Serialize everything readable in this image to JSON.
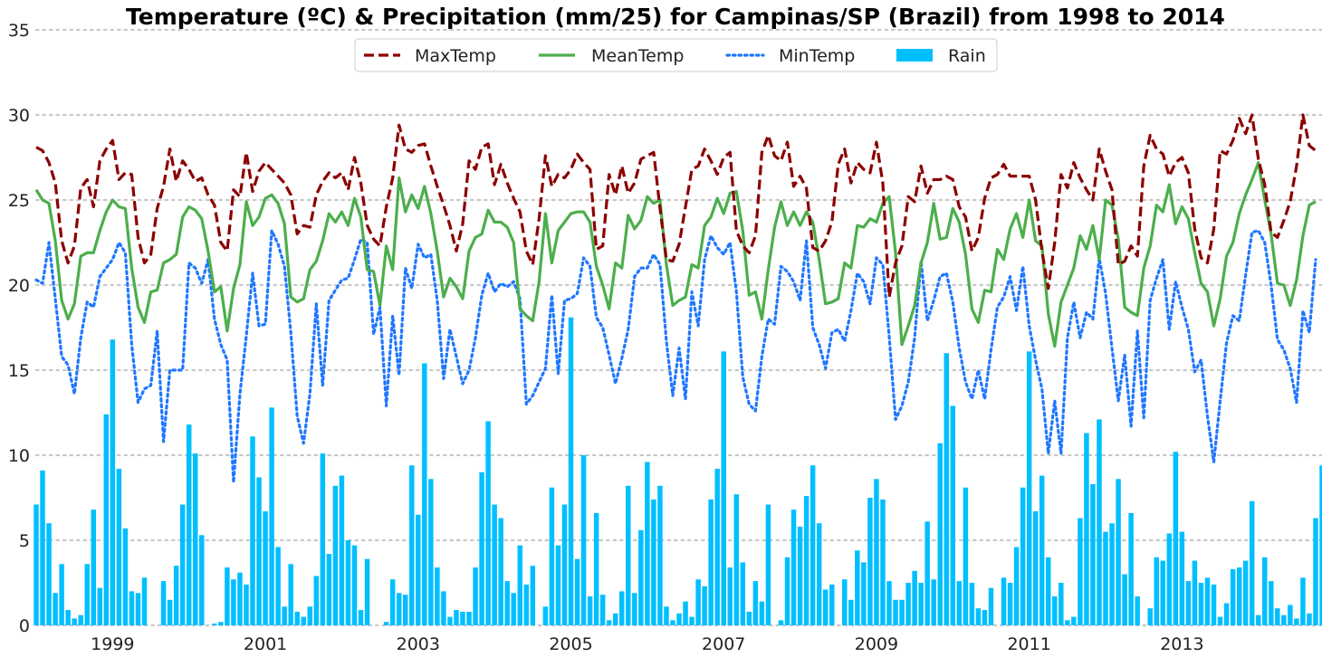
{
  "chart_data": {
    "type": "bar+line",
    "title": "Temperature (ºC) & Precipitation (mm/25) for Campinas/SP (Brazil) from 1998 to 2014",
    "xlabel": "",
    "ylabel": "",
    "x_start": "1998-01",
    "x_end": "2014-12",
    "x_tick_labels": [
      "1999",
      "2001",
      "2003",
      "2005",
      "2007",
      "2009",
      "2011",
      "2013"
    ],
    "ylim": [
      0,
      35
    ],
    "y_ticks": [
      0,
      5,
      10,
      15,
      20,
      25,
      30,
      35
    ],
    "grid": "horizontal dotted",
    "legend": {
      "placement": "top-center",
      "entries": [
        {
          "label": "MaxTemp",
          "style": "dashed",
          "color": "#8b0000"
        },
        {
          "label": "MeanTemp",
          "style": "solid",
          "color": "#4cae4c"
        },
        {
          "label": "MinTemp",
          "style": "dotted",
          "color": "#1f77ff"
        },
        {
          "label": "Rain",
          "style": "bar",
          "color": "#00bfff"
        }
      ]
    },
    "series": [
      {
        "name": "MaxTemp",
        "type": "line",
        "color": "#8b0000",
        "values": [
          28.1,
          27.9,
          27.2,
          26.0,
          22.6,
          21.3,
          22.3,
          25.7,
          26.2,
          24.6,
          27.3,
          28.0,
          28.5,
          26.2,
          26.6,
          26.5,
          22.8,
          21.3,
          21.8,
          24.5,
          25.8,
          28.0,
          26.1,
          27.3,
          26.8,
          26.1,
          26.3,
          25.3,
          24.7,
          22.5,
          22.0,
          25.6,
          25.2,
          27.8,
          25.5,
          26.7,
          27.2,
          26.8,
          26.4,
          26.0,
          25.3,
          23.0,
          23.5,
          23.4,
          25.3,
          26.1,
          26.6,
          26.3,
          26.6,
          25.6,
          27.5,
          26.0,
          23.5,
          22.7,
          22.3,
          24.6,
          26.3,
          29.4,
          28.0,
          27.8,
          28.2,
          28.3,
          27.0,
          25.8,
          24.7,
          23.5,
          22.0,
          23.6,
          27.3,
          26.8,
          28.1,
          28.3,
          25.9,
          27.1,
          26.0,
          25.1,
          24.3,
          22.0,
          21.2,
          23.9,
          27.6,
          25.8,
          26.5,
          26.3,
          26.8,
          27.7,
          27.2,
          26.8,
          22.1,
          22.3,
          26.5,
          25.3,
          27.0,
          25.4,
          26.0,
          27.4,
          27.6,
          27.8,
          24.5,
          21.5,
          21.4,
          22.4,
          24.6,
          26.8,
          27.0,
          28.0,
          27.3,
          26.5,
          27.5,
          27.8,
          23.2,
          22.3,
          21.9,
          22.9,
          27.8,
          28.8,
          27.6,
          27.3,
          28.4,
          25.8,
          26.4,
          25.7,
          22.2,
          22.0,
          22.6,
          23.7,
          27.1,
          28.0,
          26.0,
          27.2,
          26.8,
          26.6,
          28.4,
          26.0,
          19.3,
          21.3,
          22.3,
          25.2,
          24.9,
          27.0,
          25.4,
          26.2,
          26.2,
          26.4,
          26.2,
          24.6,
          24.0,
          22.0,
          22.8,
          25.1,
          26.3,
          26.5,
          27.1,
          26.4,
          26.4,
          26.4,
          26.4,
          25.0,
          22.0,
          19.8,
          22.5,
          26.5,
          25.7,
          27.2,
          26.3,
          25.6,
          25.0,
          28.0,
          26.7,
          25.6,
          21.2,
          21.4,
          22.3,
          21.7,
          27.0,
          28.8,
          28.0,
          27.7,
          26.4,
          27.2,
          27.5,
          26.6,
          23.3,
          21.6,
          21.3,
          23.3,
          27.9,
          27.7,
          28.5,
          29.8,
          28.9,
          30.0,
          27.4,
          25.9,
          23.1,
          22.8,
          23.8,
          24.9,
          27.0,
          30.0,
          28.2,
          27.9
        ]
      },
      {
        "name": "MeanTemp",
        "type": "line",
        "color": "#4cae4c",
        "values": [
          25.6,
          25.0,
          24.8,
          22.6,
          19.1,
          18.0,
          18.9,
          21.7,
          21.9,
          21.9,
          23.2,
          24.3,
          25.0,
          24.6,
          24.5,
          21.0,
          18.7,
          17.8,
          19.6,
          19.7,
          21.3,
          21.5,
          21.8,
          24.0,
          24.6,
          24.4,
          23.9,
          22.0,
          19.6,
          19.9,
          17.3,
          19.8,
          21.2,
          24.9,
          23.5,
          24.0,
          25.1,
          25.3,
          24.8,
          23.6,
          19.3,
          19.0,
          19.2,
          20.9,
          21.4,
          22.6,
          24.2,
          23.7,
          24.3,
          23.5,
          25.1,
          24.0,
          20.9,
          20.8,
          18.8,
          22.3,
          20.9,
          26.3,
          24.3,
          25.3,
          24.5,
          25.8,
          24.2,
          22.0,
          19.3,
          20.4,
          19.9,
          19.2,
          22.0,
          22.8,
          23.0,
          24.4,
          23.7,
          23.7,
          23.4,
          22.5,
          18.6,
          18.2,
          17.9,
          20.2,
          24.2,
          21.3,
          23.2,
          23.7,
          24.2,
          24.3,
          24.3,
          23.7,
          21.1,
          20.0,
          18.6,
          21.3,
          21.0,
          24.1,
          23.3,
          23.8,
          25.2,
          24.8,
          25.0,
          21.2,
          18.8,
          19.1,
          19.3,
          21.2,
          21.0,
          23.5,
          24.0,
          25.1,
          24.2,
          25.4,
          25.5,
          23.2,
          19.4,
          19.6,
          18.0,
          20.9,
          23.4,
          24.9,
          23.5,
          24.3,
          23.5,
          24.3,
          23.7,
          21.5,
          18.9,
          19.0,
          19.2,
          21.3,
          21.0,
          23.5,
          23.4,
          23.9,
          23.7,
          24.8,
          25.2,
          21.9,
          16.5,
          17.6,
          18.8,
          21.3,
          22.5,
          24.8,
          22.7,
          22.8,
          24.5,
          23.7,
          21.8,
          18.6,
          17.8,
          19.7,
          19.6,
          22.1,
          21.5,
          23.3,
          24.2,
          22.8,
          25.0,
          22.6,
          22.3,
          18.3,
          16.4,
          19.0,
          20.0,
          21.0,
          22.9,
          22.1,
          23.5,
          21.5,
          25.0,
          24.7,
          22.7,
          18.7,
          18.4,
          18.2,
          21.0,
          22.3,
          24.7,
          24.3,
          25.9,
          23.6,
          24.6,
          23.9,
          21.9,
          20.1,
          19.6,
          17.6,
          19.2,
          21.7,
          22.5,
          24.2,
          25.3,
          26.2,
          27.2,
          25.0,
          23.0,
          20.1,
          20.0,
          18.8,
          20.3,
          22.9,
          24.7,
          24.9
        ]
      },
      {
        "name": "MinTemp",
        "type": "line",
        "color": "#1f77ff",
        "values": [
          20.3,
          20.1,
          22.5,
          19.2,
          15.8,
          15.3,
          13.6,
          16.9,
          19.0,
          18.7,
          20.5,
          21.0,
          21.5,
          22.5,
          21.9,
          16.5,
          13.1,
          13.9,
          14.1,
          17.3,
          10.8,
          15.0,
          15.0,
          15.0,
          21.3,
          21.0,
          20.1,
          21.5,
          18.0,
          16.5,
          15.6,
          8.4,
          13.6,
          17.0,
          20.7,
          17.6,
          17.7,
          23.2,
          22.4,
          21.1,
          17.2,
          12.3,
          10.7,
          13.6,
          18.9,
          14.1,
          19.1,
          19.7,
          20.3,
          20.4,
          21.5,
          22.7,
          22.5,
          17.1,
          18.7,
          12.9,
          18.2,
          14.7,
          21.0,
          19.8,
          22.4,
          21.6,
          21.8,
          19.1,
          14.5,
          17.4,
          15.8,
          14.2,
          15.0,
          16.9,
          19.4,
          20.7,
          19.6,
          20.1,
          19.9,
          20.2,
          19.2,
          13.0,
          13.5,
          14.3,
          15.1,
          19.4,
          14.8,
          19.1,
          19.2,
          19.5,
          21.6,
          21.1,
          18.1,
          17.5,
          15.9,
          14.2,
          15.7,
          17.4,
          20.5,
          21.0,
          21.0,
          21.8,
          21.2,
          16.7,
          13.5,
          16.3,
          13.3,
          19.6,
          17.6,
          21.5,
          22.9,
          22.2,
          21.8,
          22.5,
          19.6,
          14.6,
          13.0,
          12.6,
          15.8,
          18.0,
          17.7,
          21.1,
          20.8,
          20.2,
          19.1,
          22.6,
          17.5,
          16.5,
          15.1,
          17.2,
          17.4,
          16.7,
          18.5,
          20.7,
          20.2,
          18.9,
          21.6,
          21.2,
          17.0,
          12.1,
          12.9,
          14.3,
          16.9,
          21.4,
          17.9,
          19.1,
          20.5,
          20.7,
          19.0,
          16.3,
          14.3,
          13.3,
          15.0,
          13.3,
          16.2,
          18.7,
          19.3,
          20.5,
          18.5,
          21.1,
          17.6,
          15.6,
          13.9,
          10.1,
          13.2,
          10.1,
          16.9,
          19.0,
          16.9,
          18.4,
          18.0,
          21.6,
          19.5,
          16.3,
          13.2,
          15.9,
          11.7,
          17.3,
          12.2,
          19.1,
          20.4,
          21.5,
          17.4,
          20.2,
          18.7,
          17.4,
          14.9,
          15.6,
          12.3,
          9.6,
          13.2,
          16.6,
          18.2,
          17.9,
          20.6,
          23.1,
          23.2,
          22.5,
          20.0,
          16.8,
          16.2,
          15.1,
          13.1,
          18.5,
          17.2,
          21.5
        ]
      },
      {
        "name": "Rain",
        "type": "bar",
        "color": "#00bfff",
        "values": [
          7.1,
          9.1,
          6.0,
          1.9,
          3.6,
          0.9,
          0.4,
          0.6,
          3.6,
          6.8,
          2.2,
          12.4,
          16.8,
          9.2,
          5.7,
          2.0,
          1.9,
          2.8,
          0,
          0,
          2.6,
          1.5,
          3.5,
          7.1,
          11.8,
          10.1,
          5.3,
          0,
          0.1,
          0.2,
          3.4,
          2.7,
          3.1,
          2.4,
          11.1,
          8.7,
          6.7,
          12.8,
          4.6,
          1.1,
          3.6,
          0.8,
          0.5,
          1.1,
          2.9,
          10.1,
          4.2,
          8.2,
          8.8,
          5.0,
          4.7,
          0.9,
          3.9,
          0,
          0,
          0.2,
          2.7,
          1.9,
          1.8,
          9.4,
          6.5,
          15.4,
          8.6,
          3.4,
          2.0,
          0.5,
          0.9,
          0.8,
          0.8,
          3.4,
          9.0,
          12.0,
          7.1,
          6.3,
          2.6,
          1.9,
          4.7,
          2.4,
          3.5,
          0,
          1.1,
          8.1,
          4.7,
          7.1,
          18.1,
          3.9,
          10.0,
          1.7,
          6.6,
          1.8,
          0.3,
          0.7,
          2.0,
          8.2,
          1.9,
          5.6,
          9.6,
          7.4,
          8.2,
          1.1,
          0.3,
          0.7,
          1.4,
          0.5,
          2.7,
          2.3,
          7.4,
          9.2,
          16.1,
          3.4,
          7.7,
          3.7,
          0.8,
          2.6,
          1.4,
          7.1,
          0,
          0.3,
          4.0,
          6.8,
          5.8,
          7.6,
          9.4,
          6.0,
          2.1,
          2.4,
          0,
          2.7,
          1.5,
          4.4,
          3.7,
          7.5,
          8.6,
          7.4,
          2.6,
          1.5,
          1.5,
          2.5,
          3.2,
          2.5,
          6.1,
          2.7,
          10.7,
          16.0,
          12.9,
          2.6,
          8.1,
          2.5,
          1.0,
          0.9,
          2.2,
          0,
          2.8,
          2.5,
          4.6,
          8.1,
          16.1,
          6.7,
          8.8,
          4.0,
          1.7,
          2.5,
          0.3,
          0.5,
          6.3,
          11.3,
          8.3,
          12.1,
          5.5,
          6.0,
          8.6,
          3.0,
          6.6,
          1.7,
          0,
          1.0,
          4.0,
          3.8,
          5.4,
          10.2,
          5.5,
          2.6,
          3.8,
          2.5,
          2.8,
          2.4,
          0.5,
          1.3,
          3.3,
          3.4,
          3.8,
          7.3,
          0.6,
          4.0,
          2.6,
          1.0,
          0.6,
          1.2,
          0.4,
          2.8,
          0.7,
          6.3,
          9.4
        ]
      }
    ]
  }
}
